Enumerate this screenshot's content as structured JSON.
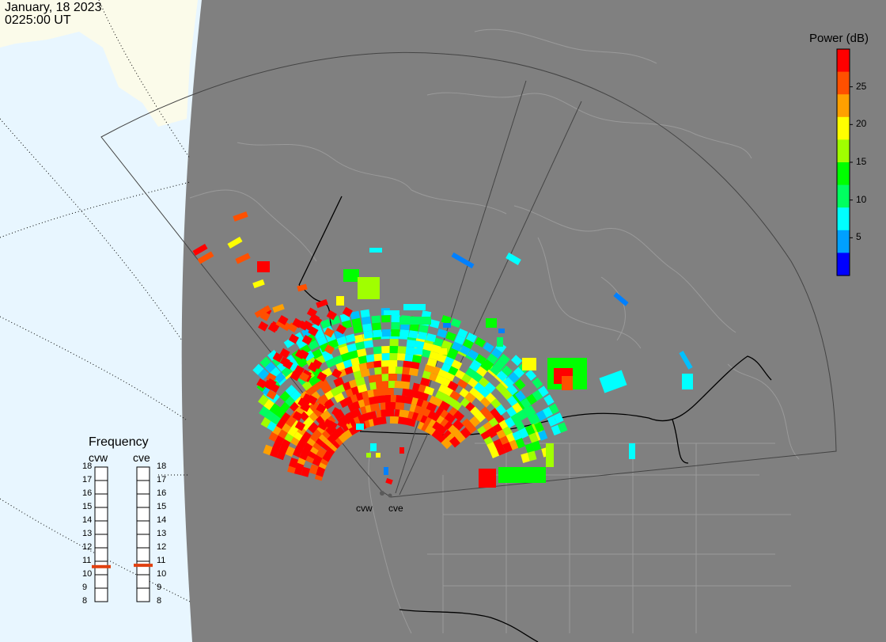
{
  "header": {
    "date": "January, 18 2023",
    "time": "0225:00 UT"
  },
  "colorbar": {
    "title": "Power (dB)",
    "ticks": [
      5,
      10,
      15,
      20,
      25
    ],
    "min": 0,
    "max": 30,
    "colors": [
      "#0000ff",
      "#00a0ff",
      "#00ffff",
      "#00ff60",
      "#00ff00",
      "#a0ff00",
      "#ffff00",
      "#ffa000",
      "#ff5000",
      "#ff0000"
    ]
  },
  "radars": [
    {
      "name": "cvw",
      "frequency": 10.6
    },
    {
      "name": "cve",
      "frequency": 10.7
    }
  ],
  "frequency_panel": {
    "title": "Frequency",
    "ticks": [
      18,
      17,
      16,
      15,
      14,
      13,
      12,
      11,
      10,
      9,
      8
    ],
    "min": 8,
    "max": 18,
    "marker_color": "#e04010"
  },
  "map_colors": {
    "ocean_day": "#e8f6ff",
    "land_day": "#fbfbea",
    "night": "#808080",
    "coastline": "#9a9a9a",
    "borders": "#000000",
    "fov": "#555555"
  }
}
